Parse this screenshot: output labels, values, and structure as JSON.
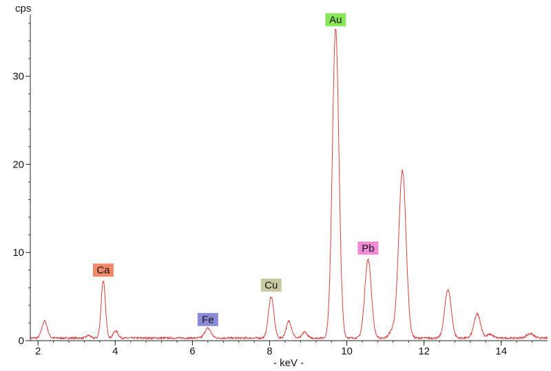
{
  "chart_data": {
    "type": "line",
    "xlabel": "- keV -",
    "ylabel": "cps",
    "xlim": [
      1.8,
      15.2
    ],
    "ylim": [
      0,
      37
    ],
    "x_ticks": [
      2,
      4,
      6,
      8,
      10,
      12,
      14
    ],
    "y_ticks": [
      0,
      10,
      20,
      30
    ],
    "x_minor_step": 0.4,
    "y_minor_step": 2,
    "grid": false,
    "line_color": "#d24040",
    "baseline": 0.3,
    "peaks": [
      {
        "x": 2.17,
        "height": 1.9,
        "width": 0.07
      },
      {
        "x": 3.31,
        "height": 0.3,
        "width": 0.05
      },
      {
        "x": 3.69,
        "height": 6.5,
        "width": 0.055
      },
      {
        "x": 4.01,
        "height": 0.8,
        "width": 0.06
      },
      {
        "x": 6.4,
        "height": 1.1,
        "width": 0.08
      },
      {
        "x": 8.04,
        "height": 4.7,
        "width": 0.07
      },
      {
        "x": 8.5,
        "height": 1.9,
        "width": 0.07
      },
      {
        "x": 8.91,
        "height": 0.7,
        "width": 0.06
      },
      {
        "x": 9.71,
        "height": 35.0,
        "width": 0.085
      },
      {
        "x": 10.55,
        "height": 8.9,
        "width": 0.085
      },
      {
        "x": 11.18,
        "height": 0.8,
        "width": 0.08
      },
      {
        "x": 11.44,
        "height": 19.0,
        "width": 0.095
      },
      {
        "x": 12.62,
        "height": 5.5,
        "width": 0.085
      },
      {
        "x": 13.38,
        "height": 2.7,
        "width": 0.085
      },
      {
        "x": 13.71,
        "height": 0.4,
        "width": 0.08
      },
      {
        "x": 14.75,
        "height": 0.5,
        "width": 0.09
      }
    ],
    "annotations": [
      {
        "label": "Ca",
        "x": 3.69,
        "y": 8.0,
        "color": "#f0886a"
      },
      {
        "label": "Fe",
        "x": 6.4,
        "y": 2.4,
        "color": "#8a8ad6"
      },
      {
        "label": "Cu",
        "x": 8.04,
        "y": 6.3,
        "color": "#c9c9a3"
      },
      {
        "label": "Au",
        "x": 9.71,
        "y": 36.4,
        "color": "#8ae65a"
      },
      {
        "label": "Pb",
        "x": 10.55,
        "y": 10.5,
        "color": "#f08ad6"
      }
    ]
  }
}
